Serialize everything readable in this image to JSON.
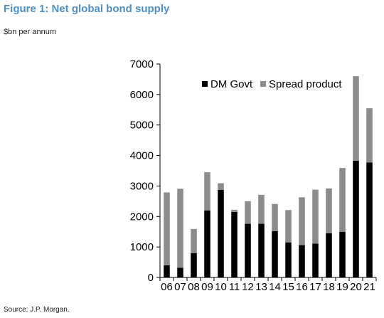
{
  "header": {
    "title": "Figure 1: Net global bond supply",
    "subtitle": "$bn per annum"
  },
  "footer": {
    "source": "Source: J.P. Morgan."
  },
  "colors": {
    "title": "#4f8fc6",
    "dm_govt": "#000000",
    "spread_product": "#8c8c8c"
  },
  "chart_data": {
    "type": "bar",
    "stacked": true,
    "categories": [
      "06",
      "07",
      "08",
      "09",
      "10",
      "11",
      "12",
      "13",
      "14",
      "15",
      "16",
      "17",
      "18",
      "19",
      "20",
      "21"
    ],
    "series": [
      {
        "name": "DM Govt",
        "color": "#000000",
        "values": [
          400,
          320,
          800,
          2200,
          2870,
          2150,
          1760,
          1760,
          1520,
          1150,
          1060,
          1110,
          1450,
          1500,
          3830,
          3770
        ]
      },
      {
        "name": "Spread product",
        "color": "#8c8c8c",
        "values": [
          2390,
          2590,
          790,
          1250,
          220,
          70,
          740,
          950,
          890,
          1060,
          1570,
          1770,
          1470,
          2090,
          2770,
          1780
        ]
      }
    ],
    "yticks": [
      0,
      1000,
      2000,
      3000,
      4000,
      5000,
      6000,
      7000
    ],
    "ylim": [
      0,
      7000
    ],
    "legend_position": "top-right",
    "grid": false
  }
}
